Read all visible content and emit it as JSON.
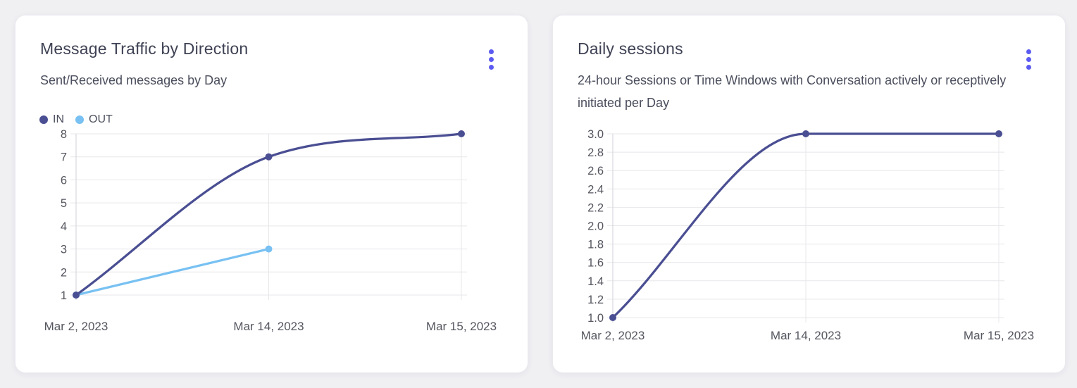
{
  "accent": {
    "menu_dots_color": "#5b5bf2"
  },
  "cards": [
    {
      "title": "Message Traffic by Direction",
      "subtitle": "Sent/Received messages by Day",
      "menu_icon": "kebab-menu",
      "chart_data": {
        "type": "line",
        "categories": [
          "Mar 2, 2023",
          "Mar 14, 2023",
          "Mar 15, 2023"
        ],
        "series": [
          {
            "name": "IN",
            "color": "#4a4e92",
            "values": [
              1,
              7,
              8
            ]
          },
          {
            "name": "OUT",
            "color": "#78c1f2",
            "values": [
              1,
              3,
              null
            ]
          }
        ],
        "y_ticks": [
          8,
          7,
          6,
          5,
          4,
          3,
          2,
          1
        ],
        "y_tick_decimals": 0,
        "ylim": [
          1,
          8
        ],
        "xlabel": "",
        "ylabel": "",
        "legend_position": "top-left",
        "grid": true,
        "curve": "monotone"
      }
    },
    {
      "title": "Daily sessions",
      "subtitle": "24-hour Sessions or Time Windows with Conversation actively or receptively initiated per Day",
      "menu_icon": "kebab-menu",
      "chart_data": {
        "type": "line",
        "categories": [
          "Mar 2, 2023",
          "Mar 14, 2023",
          "Mar 15, 2023"
        ],
        "series": [
          {
            "name": "",
            "color": "#4a4e92",
            "values": [
              1,
              3,
              3
            ]
          }
        ],
        "y_ticks": [
          3.0,
          2.8,
          2.6,
          2.4,
          2.2,
          2.0,
          1.8,
          1.6,
          1.4,
          1.2,
          1.0
        ],
        "y_tick_decimals": 1,
        "ylim": [
          1,
          3
        ],
        "xlabel": "",
        "ylabel": "",
        "legend_position": "none",
        "grid": true,
        "curve": "monotone"
      }
    }
  ]
}
